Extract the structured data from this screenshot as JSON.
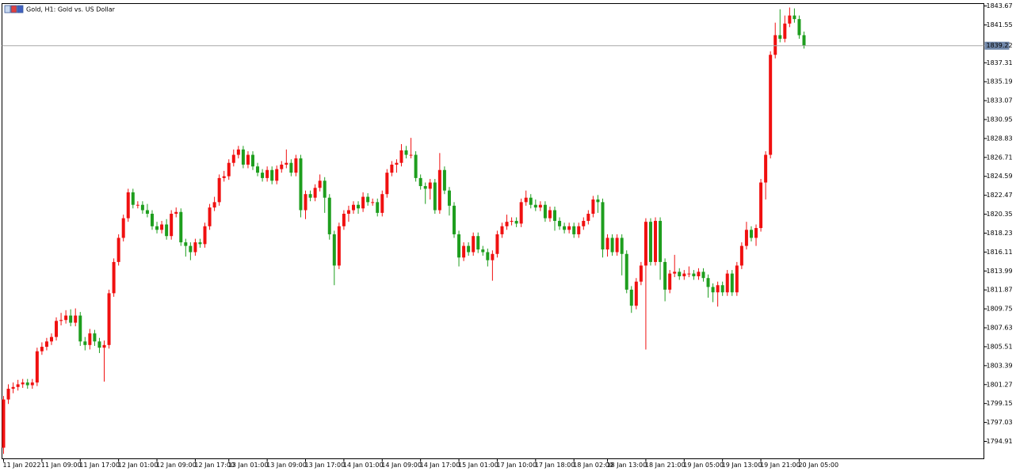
{
  "chart_data": {
    "type": "candlestick",
    "title": "Gold, H1:  Gold vs. US Dollar",
    "up_color": "#f01010",
    "down_color": "#1e9e1e",
    "ylim": [
      1792.96,
      1843.94
    ],
    "yticks": [
      1843.67,
      1841.55,
      1837.31,
      1835.19,
      1833.07,
      1830.95,
      1828.83,
      1826.71,
      1824.59,
      1822.47,
      1820.35,
      1818.23,
      1816.11,
      1813.99,
      1811.87,
      1809.75,
      1807.63,
      1805.51,
      1803.39,
      1801.27,
      1799.15,
      1797.03,
      1794.91
    ],
    "last_price": 1839.22,
    "categories": [
      "11 Jan 2022",
      null,
      null,
      null,
      null,
      null,
      null,
      null,
      "11 Jan 09:00",
      null,
      null,
      null,
      null,
      null,
      null,
      null,
      "11 Jan 17:00",
      null,
      null,
      null,
      null,
      null,
      null,
      null,
      "12 Jan 01:00",
      null,
      null,
      null,
      null,
      null,
      null,
      null,
      "12 Jan 09:00",
      null,
      null,
      null,
      null,
      null,
      null,
      null,
      "12 Jan 17:00",
      null,
      null,
      null,
      null,
      null,
      null,
      "13 Jan 01:00",
      null,
      null,
      null,
      null,
      null,
      null,
      null,
      "13 Jan 09:00",
      null,
      null,
      null,
      null,
      null,
      null,
      null,
      "13 Jan 17:00",
      null,
      null,
      null,
      null,
      null,
      null,
      null,
      "14 Jan 01:00",
      null,
      null,
      null,
      null,
      null,
      null,
      null,
      "14 Jan 09:00",
      null,
      null,
      null,
      null,
      null,
      null,
      null,
      "14 Jan 17:00",
      null,
      null,
      null,
      null,
      null,
      null,
      null,
      "15 Jan 01:00",
      null,
      null,
      null,
      null,
      null,
      null,
      null,
      "17 Jan 10:00",
      null,
      null,
      null,
      null,
      null,
      null,
      null,
      "17 Jan 18:00",
      null,
      null,
      null,
      null,
      null,
      null,
      null,
      "18 Jan 02:00",
      null,
      null,
      null,
      null,
      null,
      null,
      "18 Jan 13:00",
      null,
      null,
      null,
      null,
      null,
      null,
      null,
      "18 Jan 21:00",
      null,
      null,
      null,
      null,
      null,
      null,
      null,
      "19 Jan 05:00",
      null,
      null,
      null,
      null,
      null,
      null,
      null,
      "19 Jan 13:00",
      null,
      null,
      null,
      null,
      null,
      null,
      null,
      "19 Jan 21:00",
      null,
      null,
      null,
      null,
      null,
      null,
      null,
      "20 Jan 05:00",
      null
    ],
    "ohlc": [
      [
        1794.2,
        1800.0,
        1793.5,
        1799.6
      ],
      [
        1799.6,
        1801.3,
        1799.1,
        1800.8
      ],
      [
        1800.8,
        1801.5,
        1800.3,
        1801.0
      ],
      [
        1801.0,
        1801.8,
        1800.6,
        1801.3
      ],
      [
        1801.3,
        1801.9,
        1800.9,
        1801.5
      ],
      [
        1801.5,
        1801.9,
        1800.8,
        1801.2
      ],
      [
        1801.2,
        1801.9,
        1800.8,
        1801.5
      ],
      [
        1801.5,
        1805.4,
        1801.1,
        1805.0
      ],
      [
        1805.0,
        1806.0,
        1804.6,
        1805.5
      ],
      [
        1805.5,
        1806.5,
        1805.1,
        1806.1
      ],
      [
        1806.1,
        1807.0,
        1805.7,
        1806.6
      ],
      [
        1806.6,
        1808.8,
        1806.2,
        1808.4
      ],
      [
        1808.4,
        1809.3,
        1807.9,
        1808.5
      ],
      [
        1808.5,
        1809.6,
        1808.1,
        1809.0
      ],
      [
        1809.0,
        1809.7,
        1807.8,
        1808.2
      ],
      [
        1808.2,
        1809.8,
        1807.8,
        1809.0
      ],
      [
        1809.0,
        1809.4,
        1805.6,
        1806.1
      ],
      [
        1806.1,
        1806.6,
        1805.1,
        1805.7
      ],
      [
        1805.7,
        1807.5,
        1805.2,
        1807.0
      ],
      [
        1807.0,
        1807.4,
        1805.6,
        1806.1
      ],
      [
        1806.1,
        1806.5,
        1804.8,
        1805.4
      ],
      [
        1805.4,
        1806.2,
        1801.6,
        1805.7
      ],
      [
        1805.7,
        1811.9,
        1805.3,
        1811.5
      ],
      [
        1811.5,
        1815.4,
        1811.1,
        1815.0
      ],
      [
        1815.0,
        1818.1,
        1814.6,
        1817.7
      ],
      [
        1817.7,
        1820.3,
        1817.3,
        1819.9
      ],
      [
        1819.9,
        1823.2,
        1819.5,
        1822.8
      ],
      [
        1822.8,
        1823.2,
        1821.0,
        1821.4
      ],
      [
        1821.4,
        1821.8,
        1821.0,
        1821.4
      ],
      [
        1821.4,
        1821.8,
        1820.4,
        1820.8
      ],
      [
        1820.8,
        1821.5,
        1820.0,
        1820.4
      ],
      [
        1820.4,
        1820.8,
        1818.6,
        1819.0
      ],
      [
        1819.0,
        1819.5,
        1818.2,
        1818.6
      ],
      [
        1818.6,
        1819.6,
        1818.2,
        1819.2
      ],
      [
        1819.2,
        1819.8,
        1817.5,
        1817.9
      ],
      [
        1817.9,
        1820.8,
        1817.5,
        1820.4
      ],
      [
        1820.4,
        1821.1,
        1820.0,
        1820.6
      ],
      [
        1820.6,
        1821.0,
        1816.8,
        1817.2
      ],
      [
        1817.2,
        1817.6,
        1815.6,
        1816.8
      ],
      [
        1816.8,
        1817.2,
        1815.2,
        1816.1
      ],
      [
        1816.1,
        1817.6,
        1815.7,
        1817.2
      ],
      [
        1817.2,
        1817.6,
        1816.6,
        1817.0
      ],
      [
        1817.0,
        1819.4,
        1816.6,
        1819.0
      ],
      [
        1819.0,
        1821.5,
        1818.6,
        1821.1
      ],
      [
        1821.1,
        1822.3,
        1820.7,
        1821.7
      ],
      [
        1821.7,
        1824.8,
        1821.3,
        1824.4
      ],
      [
        1824.4,
        1825.2,
        1824.0,
        1824.6
      ],
      [
        1824.6,
        1826.5,
        1824.2,
        1826.1
      ],
      [
        1826.1,
        1827.6,
        1825.7,
        1827.0
      ],
      [
        1827.0,
        1828.0,
        1826.6,
        1827.6
      ],
      [
        1827.6,
        1828.0,
        1825.5,
        1825.9
      ],
      [
        1825.9,
        1827.4,
        1825.5,
        1827.0
      ],
      [
        1827.0,
        1827.4,
        1825.3,
        1825.7
      ],
      [
        1825.7,
        1826.1,
        1824.6,
        1825.0
      ],
      [
        1825.0,
        1825.4,
        1824.0,
        1824.4
      ],
      [
        1824.4,
        1825.7,
        1824.0,
        1825.3
      ],
      [
        1825.3,
        1825.7,
        1823.7,
        1824.1
      ],
      [
        1824.1,
        1825.8,
        1823.7,
        1825.4
      ],
      [
        1825.4,
        1826.3,
        1825.0,
        1825.9
      ],
      [
        1825.9,
        1827.6,
        1825.5,
        1826.1
      ],
      [
        1826.1,
        1826.5,
        1824.6,
        1825.0
      ],
      [
        1825.0,
        1827.0,
        1824.6,
        1826.6
      ],
      [
        1826.6,
        1827.0,
        1820.0,
        1820.8
      ],
      [
        1820.8,
        1823.0,
        1819.8,
        1822.6
      ],
      [
        1822.6,
        1823.0,
        1821.8,
        1822.2
      ],
      [
        1822.2,
        1823.7,
        1821.8,
        1823.3
      ],
      [
        1823.3,
        1824.8,
        1822.9,
        1824.1
      ],
      [
        1824.1,
        1824.5,
        1820.5,
        1822.2
      ],
      [
        1822.2,
        1822.6,
        1817.5,
        1818.1
      ],
      [
        1818.1,
        1818.5,
        1812.4,
        1814.6
      ],
      [
        1814.6,
        1819.4,
        1814.2,
        1819.0
      ],
      [
        1819.0,
        1820.8,
        1818.6,
        1820.4
      ],
      [
        1820.4,
        1821.3,
        1819.5,
        1820.8
      ],
      [
        1820.8,
        1821.8,
        1820.4,
        1821.4
      ],
      [
        1821.4,
        1821.8,
        1820.4,
        1821.0
      ],
      [
        1821.0,
        1822.8,
        1820.6,
        1822.3
      ],
      [
        1822.3,
        1822.7,
        1821.3,
        1821.7
      ],
      [
        1821.7,
        1822.1,
        1821.3,
        1821.7
      ],
      [
        1821.7,
        1822.1,
        1820.1,
        1820.5
      ],
      [
        1820.5,
        1823.0,
        1820.1,
        1822.6
      ],
      [
        1822.6,
        1825.4,
        1822.2,
        1825.0
      ],
      [
        1825.0,
        1826.3,
        1824.6,
        1825.9
      ],
      [
        1825.9,
        1826.5,
        1825.0,
        1826.1
      ],
      [
        1826.1,
        1828.2,
        1825.7,
        1827.5
      ],
      [
        1827.5,
        1828.0,
        1826.6,
        1827.0
      ],
      [
        1827.0,
        1828.9,
        1826.6,
        1827.0
      ],
      [
        1827.0,
        1827.4,
        1824.0,
        1824.4
      ],
      [
        1824.4,
        1824.8,
        1823.1,
        1823.5
      ],
      [
        1823.5,
        1823.9,
        1821.5,
        1823.2
      ],
      [
        1823.2,
        1824.3,
        1822.0,
        1823.9
      ],
      [
        1823.9,
        1824.3,
        1820.4,
        1820.8
      ],
      [
        1820.8,
        1827.2,
        1820.4,
        1825.3
      ],
      [
        1825.3,
        1825.7,
        1822.6,
        1823.0
      ],
      [
        1823.0,
        1823.4,
        1820.2,
        1821.3
      ],
      [
        1821.3,
        1821.7,
        1817.7,
        1818.1
      ],
      [
        1818.1,
        1818.5,
        1814.5,
        1815.5
      ],
      [
        1815.5,
        1817.2,
        1815.1,
        1816.8
      ],
      [
        1816.8,
        1817.2,
        1815.7,
        1816.1
      ],
      [
        1816.1,
        1818.3,
        1815.7,
        1817.9
      ],
      [
        1817.9,
        1818.3,
        1816.0,
        1816.4
      ],
      [
        1816.4,
        1816.8,
        1815.7,
        1816.1
      ],
      [
        1816.1,
        1816.5,
        1814.5,
        1815.2
      ],
      [
        1815.2,
        1816.3,
        1812.9,
        1815.9
      ],
      [
        1815.9,
        1818.5,
        1815.5,
        1818.1
      ],
      [
        1818.1,
        1819.4,
        1817.7,
        1819.0
      ],
      [
        1819.0,
        1820.3,
        1818.6,
        1819.5
      ],
      [
        1819.5,
        1820.0,
        1819.1,
        1819.6
      ],
      [
        1819.6,
        1820.0,
        1818.9,
        1819.3
      ],
      [
        1819.3,
        1822.1,
        1818.9,
        1821.7
      ],
      [
        1821.7,
        1823.0,
        1821.3,
        1822.2
      ],
      [
        1822.2,
        1822.6,
        1821.0,
        1821.4
      ],
      [
        1821.4,
        1822.0,
        1820.7,
        1821.1
      ],
      [
        1821.1,
        1821.8,
        1820.7,
        1821.4
      ],
      [
        1821.4,
        1821.8,
        1819.5,
        1819.9
      ],
      [
        1819.9,
        1821.2,
        1819.5,
        1820.8
      ],
      [
        1820.8,
        1821.2,
        1818.5,
        1819.6
      ],
      [
        1819.6,
        1820.0,
        1818.6,
        1819.0
      ],
      [
        1819.0,
        1819.4,
        1818.2,
        1818.6
      ],
      [
        1818.6,
        1819.4,
        1818.2,
        1819.0
      ],
      [
        1819.0,
        1819.4,
        1817.7,
        1818.1
      ],
      [
        1818.1,
        1819.4,
        1817.7,
        1819.0
      ],
      [
        1819.0,
        1820.0,
        1818.6,
        1819.6
      ],
      [
        1819.6,
        1820.8,
        1819.2,
        1820.4
      ],
      [
        1820.4,
        1822.4,
        1820.0,
        1822.0
      ],
      [
        1822.0,
        1822.5,
        1820.5,
        1821.7
      ],
      [
        1821.7,
        1822.1,
        1815.5,
        1816.4
      ],
      [
        1816.4,
        1818.1,
        1815.6,
        1817.7
      ],
      [
        1817.7,
        1818.1,
        1815.7,
        1816.1
      ],
      [
        1816.1,
        1818.1,
        1815.7,
        1817.7
      ],
      [
        1817.7,
        1818.1,
        1813.5,
        1815.9
      ],
      [
        1815.9,
        1816.3,
        1811.5,
        1811.9
      ],
      [
        1811.9,
        1812.3,
        1809.3,
        1810.1
      ],
      [
        1810.1,
        1813.2,
        1809.7,
        1812.8
      ],
      [
        1812.8,
        1815.0,
        1812.4,
        1814.6
      ],
      [
        1814.6,
        1819.9,
        1805.2,
        1819.5
      ],
      [
        1819.5,
        1819.9,
        1814.6,
        1815.0
      ],
      [
        1815.0,
        1820.0,
        1814.6,
        1819.6
      ],
      [
        1819.6,
        1820.0,
        1813.0,
        1815.0
      ],
      [
        1815.0,
        1815.4,
        1810.6,
        1811.9
      ],
      [
        1811.9,
        1814.1,
        1811.5,
        1813.7
      ],
      [
        1813.7,
        1815.8,
        1813.3,
        1813.9
      ],
      [
        1813.9,
        1814.3,
        1813.0,
        1813.4
      ],
      [
        1813.4,
        1814.1,
        1813.0,
        1813.7
      ],
      [
        1813.7,
        1814.5,
        1813.3,
        1813.7
      ],
      [
        1813.7,
        1814.1,
        1813.0,
        1813.4
      ],
      [
        1813.4,
        1814.3,
        1813.0,
        1813.9
      ],
      [
        1813.9,
        1814.3,
        1812.8,
        1813.2
      ],
      [
        1813.2,
        1813.6,
        1811.0,
        1812.2
      ],
      [
        1812.2,
        1812.6,
        1810.5,
        1811.6
      ],
      [
        1811.6,
        1812.8,
        1810.0,
        1812.4
      ],
      [
        1812.4,
        1812.8,
        1811.2,
        1811.6
      ],
      [
        1811.6,
        1814.1,
        1811.2,
        1813.7
      ],
      [
        1813.7,
        1814.1,
        1811.2,
        1811.6
      ],
      [
        1811.6,
        1815.0,
        1811.2,
        1814.6
      ],
      [
        1814.6,
        1817.2,
        1814.2,
        1816.8
      ],
      [
        1816.8,
        1819.5,
        1816.4,
        1818.6
      ],
      [
        1818.6,
        1819.0,
        1817.3,
        1817.7
      ],
      [
        1817.7,
        1819.2,
        1816.8,
        1818.8
      ],
      [
        1818.8,
        1824.3,
        1818.4,
        1823.9
      ],
      [
        1823.9,
        1827.4,
        1822.0,
        1827.0
      ],
      [
        1827.0,
        1838.6,
        1826.6,
        1838.2
      ],
      [
        1838.2,
        1841.8,
        1837.8,
        1840.4
      ],
      [
        1840.4,
        1843.3,
        1839.6,
        1840.0
      ],
      [
        1840.0,
        1842.6,
        1839.6,
        1841.7
      ],
      [
        1841.7,
        1843.5,
        1841.3,
        1842.6
      ],
      [
        1842.6,
        1843.4,
        1841.8,
        1842.2
      ],
      [
        1842.2,
        1842.6,
        1840.0,
        1840.4
      ],
      [
        1840.4,
        1840.8,
        1838.9,
        1839.22
      ]
    ]
  }
}
